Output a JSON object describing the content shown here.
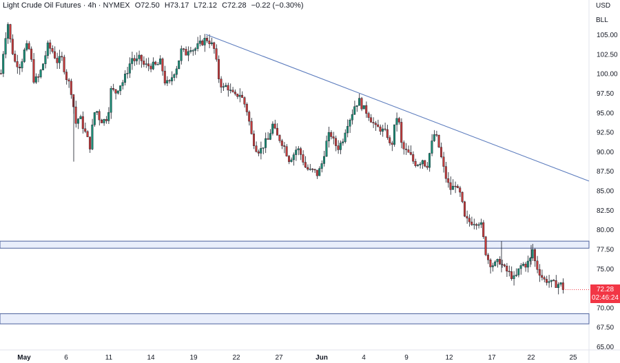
{
  "header": {
    "title": "Light Crude Oil Futures · 4h · NYMEX",
    "open": "O72.50",
    "high": "H73.17",
    "low": "L72.12",
    "close": "C72.28",
    "change": "−0.22 (−0.30%)"
  },
  "axis": {
    "currency": "USD",
    "unit": "BLL"
  },
  "last_price": {
    "price": "72.28",
    "countdown": "02:46:24"
  },
  "colors": {
    "up": "#22ab94",
    "down": "#f23645",
    "candle_body_up": "#1b8b74",
    "candle_body_down": "#c23b3b",
    "trendline": "#5b7bbd",
    "zone_fill": "#e9eefb",
    "zone_border": "#4a5f9b"
  },
  "chart_data": {
    "type": "candlestick",
    "ylim": [
      65,
      107
    ],
    "y_ticks": [
      "105.00",
      "102.50",
      "100.00",
      "97.50",
      "95.00",
      "92.50",
      "90.00",
      "87.50",
      "85.00",
      "82.50",
      "80.00",
      "77.50",
      "75.00",
      "72.50",
      "70.00",
      "67.50",
      "65.00"
    ],
    "x_ticks": [
      "May",
      "6",
      "11",
      "14",
      "19",
      "22",
      "27",
      "Jun",
      "4",
      "9",
      "12",
      "17",
      "22",
      "25"
    ],
    "trendline": {
      "from": {
        "x": "19",
        "y": 105.0
      },
      "to": {
        "x": "25",
        "y": 86.2
      }
    },
    "zones": [
      {
        "top": 78.5,
        "bottom": 77.6
      },
      {
        "top": 69.2,
        "bottom": 67.9
      }
    ],
    "last_close": 72.28,
    "path": [
      [
        0,
        100
      ],
      [
        5,
        104
      ],
      [
        10,
        106.5
      ],
      [
        14,
        104
      ],
      [
        20,
        101.5
      ],
      [
        28,
        101
      ],
      [
        36,
        103.5
      ],
      [
        42,
        103
      ],
      [
        48,
        99
      ],
      [
        55,
        99.5
      ],
      [
        62,
        101.5
      ],
      [
        68,
        103.5
      ],
      [
        74,
        103
      ],
      [
        82,
        101.5
      ],
      [
        88,
        102
      ],
      [
        95,
        99.5
      ],
      [
        100,
        98.5
      ],
      [
        104,
        97
      ],
      [
        108,
        93.5
      ],
      [
        114,
        94.5
      ],
      [
        120,
        93
      ],
      [
        126,
        91.5
      ],
      [
        130,
        90.5
      ],
      [
        134,
        94.5
      ],
      [
        138,
        95.5
      ],
      [
        144,
        94
      ],
      [
        150,
        94
      ],
      [
        155,
        94.5
      ],
      [
        160,
        98
      ],
      [
        166,
        97.5
      ],
      [
        172,
        98.5
      ],
      [
        178,
        99
      ],
      [
        184,
        100.5
      ],
      [
        190,
        102
      ],
      [
        196,
        101.5
      ],
      [
        202,
        102
      ],
      [
        208,
        101
      ],
      [
        214,
        101
      ],
      [
        220,
        101
      ],
      [
        226,
        101
      ],
      [
        232,
        101.5
      ],
      [
        238,
        99
      ],
      [
        244,
        98.5
      ],
      [
        250,
        100
      ],
      [
        256,
        101
      ],
      [
        262,
        103
      ],
      [
        268,
        102.5
      ],
      [
        274,
        103.5
      ],
      [
        280,
        103
      ],
      [
        286,
        103.5
      ],
      [
        292,
        104
      ],
      [
        298,
        104.5
      ],
      [
        304,
        104
      ],
      [
        310,
        103
      ],
      [
        316,
        99.5
      ],
      [
        322,
        98
      ],
      [
        328,
        98.5
      ],
      [
        334,
        97.5
      ],
      [
        340,
        97
      ],
      [
        346,
        97.5
      ],
      [
        352,
        96.5
      ],
      [
        358,
        95
      ],
      [
        364,
        92
      ],
      [
        370,
        90.5
      ],
      [
        376,
        90
      ],
      [
        382,
        91
      ],
      [
        388,
        91.5
      ],
      [
        394,
        93.5
      ],
      [
        400,
        92
      ],
      [
        406,
        91.5
      ],
      [
        412,
        90.5
      ],
      [
        418,
        89
      ],
      [
        424,
        89.5
      ],
      [
        430,
        90.5
      ],
      [
        436,
        89.5
      ],
      [
        442,
        88
      ],
      [
        448,
        87.5
      ],
      [
        454,
        87.5
      ],
      [
        460,
        87
      ],
      [
        466,
        88.5
      ],
      [
        472,
        91
      ],
      [
        478,
        92.5
      ],
      [
        484,
        91
      ],
      [
        490,
        90.5
      ],
      [
        496,
        91.5
      ],
      [
        502,
        93.5
      ],
      [
        508,
        94.5
      ],
      [
        514,
        96
      ],
      [
        520,
        96.5
      ],
      [
        526,
        95.5
      ],
      [
        532,
        95
      ],
      [
        538,
        94
      ],
      [
        544,
        93
      ],
      [
        550,
        93
      ],
      [
        556,
        92.5
      ],
      [
        562,
        92
      ],
      [
        566,
        90
      ],
      [
        570,
        92.5
      ],
      [
        576,
        95
      ],
      [
        582,
        90.5
      ],
      [
        588,
        90
      ],
      [
        594,
        89.5
      ],
      [
        600,
        88.5
      ],
      [
        606,
        88.5
      ],
      [
        612,
        89
      ],
      [
        618,
        88
      ],
      [
        624,
        90.5
      ],
      [
        630,
        92.5
      ],
      [
        636,
        90.5
      ],
      [
        642,
        88
      ],
      [
        648,
        86
      ],
      [
        654,
        85
      ],
      [
        660,
        86
      ],
      [
        664,
        84.5
      ],
      [
        668,
        84.5
      ],
      [
        672,
        81.5
      ],
      [
        678,
        81
      ],
      [
        684,
        81
      ],
      [
        690,
        81
      ],
      [
        696,
        81
      ],
      [
        700,
        79
      ],
      [
        704,
        77
      ],
      [
        708,
        76
      ],
      [
        712,
        75.5
      ],
      [
        718,
        75.5
      ],
      [
        724,
        76
      ],
      [
        730,
        75
      ],
      [
        736,
        74.5
      ],
      [
        742,
        74
      ],
      [
        746,
        73.5
      ],
      [
        750,
        74.5
      ],
      [
        756,
        75.5
      ],
      [
        762,
        75.5
      ],
      [
        768,
        76
      ],
      [
        772,
        77.5
      ],
      [
        776,
        75.5
      ],
      [
        782,
        74.5
      ],
      [
        788,
        73.5
      ],
      [
        794,
        73.5
      ],
      [
        800,
        73
      ],
      [
        806,
        73
      ],
      [
        812,
        73
      ],
      [
        818,
        72.28
      ]
    ]
  }
}
